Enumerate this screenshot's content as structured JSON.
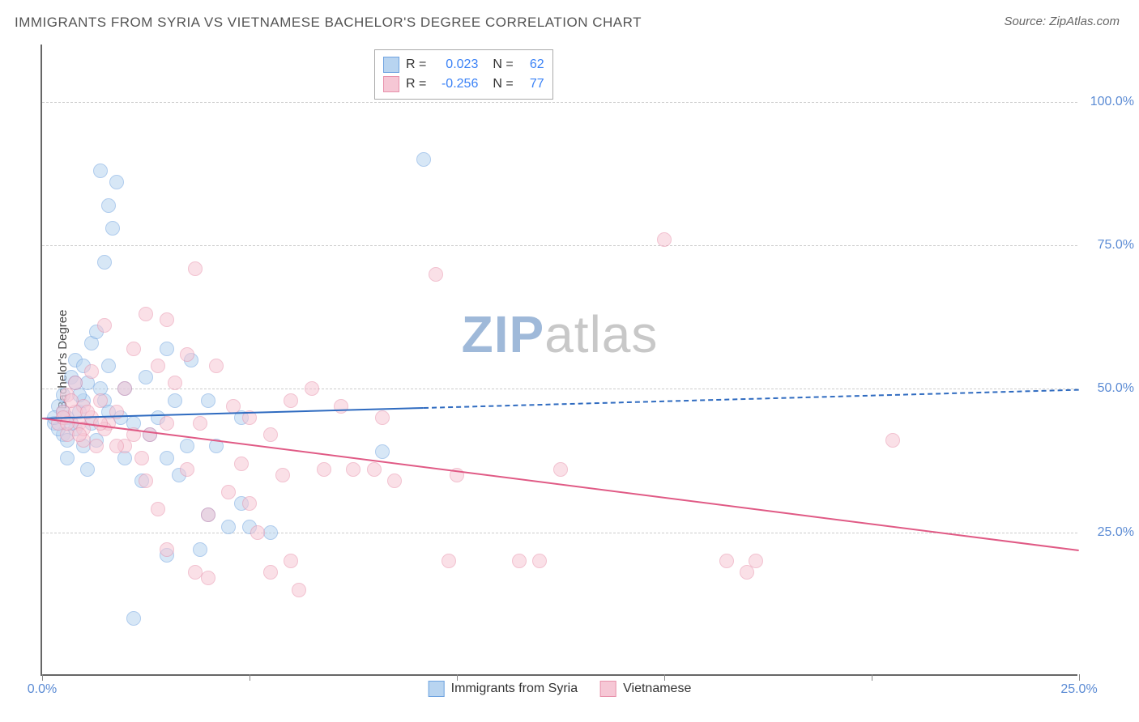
{
  "title": "IMMIGRANTS FROM SYRIA VS VIETNAMESE BACHELOR'S DEGREE CORRELATION CHART",
  "source": "Source: ZipAtlas.com",
  "watermark_zip": "ZIP",
  "watermark_atlas": "atlas",
  "watermark_color_zip": "#9fb9d9",
  "watermark_color_atlas": "#c8c8c8",
  "chart": {
    "type": "scatter-with-trend",
    "y_axis_title": "Bachelor's Degree",
    "xlim": [
      0,
      25
    ],
    "ylim": [
      0,
      110
    ],
    "x_ticks": [
      0,
      5,
      10,
      15,
      20,
      25
    ],
    "y_ticks": [
      25,
      50,
      75,
      100
    ],
    "x_tick_labels": {
      "0": "0.0%",
      "25": "25.0%"
    },
    "y_tick_labels": {
      "25": "25.0%",
      "50": "50.0%",
      "75": "75.0%",
      "100": "100.0%"
    },
    "grid_color": "#cccccc",
    "background_color": "#ffffff",
    "series": [
      {
        "name": "Immigrants from Syria",
        "stroke": "#6fa3e0",
        "fill": "#b8d4f0",
        "opacity": 0.55,
        "marker_radius": 9,
        "R": "0.023",
        "N": "62",
        "trend": {
          "x0": 0,
          "y0": 45,
          "x1": 25,
          "y1": 50,
          "solid_until_x": 9.2,
          "color": "#2f6bc0",
          "width": 2
        },
        "points": [
          [
            0.3,
            44
          ],
          [
            0.4,
            47
          ],
          [
            0.5,
            42
          ],
          [
            0.6,
            45
          ],
          [
            0.5,
            49
          ],
          [
            0.6,
            38
          ],
          [
            0.7,
            52
          ],
          [
            0.8,
            55
          ],
          [
            0.8,
            43
          ],
          [
            0.9,
            46
          ],
          [
            1.0,
            40
          ],
          [
            1.0,
            48
          ],
          [
            1.1,
            36
          ],
          [
            1.2,
            58
          ],
          [
            1.2,
            44
          ],
          [
            1.3,
            41
          ],
          [
            1.3,
            60
          ],
          [
            1.4,
            88
          ],
          [
            1.5,
            72
          ],
          [
            1.6,
            82
          ],
          [
            1.7,
            78
          ],
          [
            1.5,
            48
          ],
          [
            1.6,
            54
          ],
          [
            1.8,
            86
          ],
          [
            1.9,
            45
          ],
          [
            2.0,
            38
          ],
          [
            2.0,
            50
          ],
          [
            2.2,
            10
          ],
          [
            2.2,
            44
          ],
          [
            2.4,
            34
          ],
          [
            2.5,
            52
          ],
          [
            2.6,
            42
          ],
          [
            2.8,
            45
          ],
          [
            3.0,
            21
          ],
          [
            3.0,
            38
          ],
          [
            3.2,
            48
          ],
          [
            3.3,
            35
          ],
          [
            3.5,
            40
          ],
          [
            3.6,
            55
          ],
          [
            3.8,
            22
          ],
          [
            4.0,
            48
          ],
          [
            4.0,
            28
          ],
          [
            4.2,
            40
          ],
          [
            4.5,
            26
          ],
          [
            4.8,
            45
          ],
          [
            4.8,
            30
          ],
          [
            5.0,
            26
          ],
          [
            5.5,
            25
          ],
          [
            3.0,
            57
          ],
          [
            1.0,
            54
          ],
          [
            0.8,
            51
          ],
          [
            0.6,
            41
          ],
          [
            0.4,
            43
          ],
          [
            0.3,
            45
          ],
          [
            0.5,
            46
          ],
          [
            1.1,
            51
          ],
          [
            1.4,
            50
          ],
          [
            1.6,
            46
          ],
          [
            8.2,
            39
          ],
          [
            9.2,
            90
          ],
          [
            0.7,
            44
          ],
          [
            0.9,
            49
          ]
        ]
      },
      {
        "name": "Vietnamese",
        "stroke": "#e891ab",
        "fill": "#f6c7d5",
        "opacity": 0.55,
        "marker_radius": 9,
        "R": "-0.256",
        "N": "77",
        "trend": {
          "x0": 0,
          "y0": 45,
          "x1": 25,
          "y1": 22,
          "solid_until_x": 25,
          "color": "#e05a85",
          "width": 2
        },
        "points": [
          [
            0.4,
            44
          ],
          [
            0.5,
            46
          ],
          [
            0.6,
            42
          ],
          [
            0.6,
            49
          ],
          [
            0.8,
            51
          ],
          [
            0.9,
            44
          ],
          [
            1.0,
            47
          ],
          [
            1.0,
            41
          ],
          [
            1.2,
            45
          ],
          [
            1.2,
            53
          ],
          [
            1.4,
            48
          ],
          [
            1.5,
            61
          ],
          [
            1.6,
            44
          ],
          [
            1.8,
            46
          ],
          [
            2.0,
            40
          ],
          [
            2.0,
            50
          ],
          [
            2.2,
            57
          ],
          [
            2.4,
            38
          ],
          [
            2.5,
            63
          ],
          [
            2.6,
            42
          ],
          [
            2.8,
            54
          ],
          [
            3.0,
            62
          ],
          [
            3.0,
            44
          ],
          [
            3.2,
            51
          ],
          [
            3.5,
            56
          ],
          [
            3.5,
            36
          ],
          [
            3.7,
            18
          ],
          [
            3.7,
            71
          ],
          [
            3.8,
            44
          ],
          [
            4.0,
            28
          ],
          [
            4.2,
            54
          ],
          [
            4.5,
            32
          ],
          [
            4.6,
            47
          ],
          [
            4.8,
            37
          ],
          [
            5.0,
            30
          ],
          [
            5.0,
            45
          ],
          [
            5.2,
            25
          ],
          [
            5.5,
            18
          ],
          [
            5.5,
            42
          ],
          [
            5.8,
            35
          ],
          [
            6.0,
            48
          ],
          [
            6.0,
            20
          ],
          [
            6.2,
            15
          ],
          [
            6.5,
            50
          ],
          [
            6.8,
            36
          ],
          [
            7.2,
            47
          ],
          [
            7.5,
            36
          ],
          [
            8.0,
            36
          ],
          [
            8.2,
            45
          ],
          [
            8.5,
            34
          ],
          [
            9.5,
            70
          ],
          [
            9.8,
            20
          ],
          [
            10.0,
            35
          ],
          [
            4.0,
            17
          ],
          [
            3.0,
            22
          ],
          [
            2.8,
            29
          ],
          [
            2.5,
            34
          ],
          [
            2.2,
            42
          ],
          [
            1.8,
            40
          ],
          [
            1.5,
            43
          ],
          [
            1.3,
            40
          ],
          [
            1.0,
            43
          ],
          [
            0.8,
            46
          ],
          [
            0.7,
            48
          ],
          [
            11.5,
            20
          ],
          [
            12.0,
            20
          ],
          [
            12.5,
            36
          ],
          [
            15.0,
            76
          ],
          [
            16.5,
            20
          ],
          [
            17.0,
            18
          ],
          [
            17.2,
            20
          ],
          [
            20.5,
            41
          ],
          [
            0.5,
            45
          ],
          [
            0.6,
            44
          ],
          [
            0.9,
            42
          ],
          [
            1.4,
            44
          ],
          [
            1.1,
            46
          ]
        ]
      }
    ]
  },
  "legend_bottom": [
    {
      "label": "Immigrants from Syria",
      "stroke": "#6fa3e0",
      "fill": "#b8d4f0"
    },
    {
      "label": "Vietnamese",
      "stroke": "#e891ab",
      "fill": "#f6c7d5"
    }
  ]
}
